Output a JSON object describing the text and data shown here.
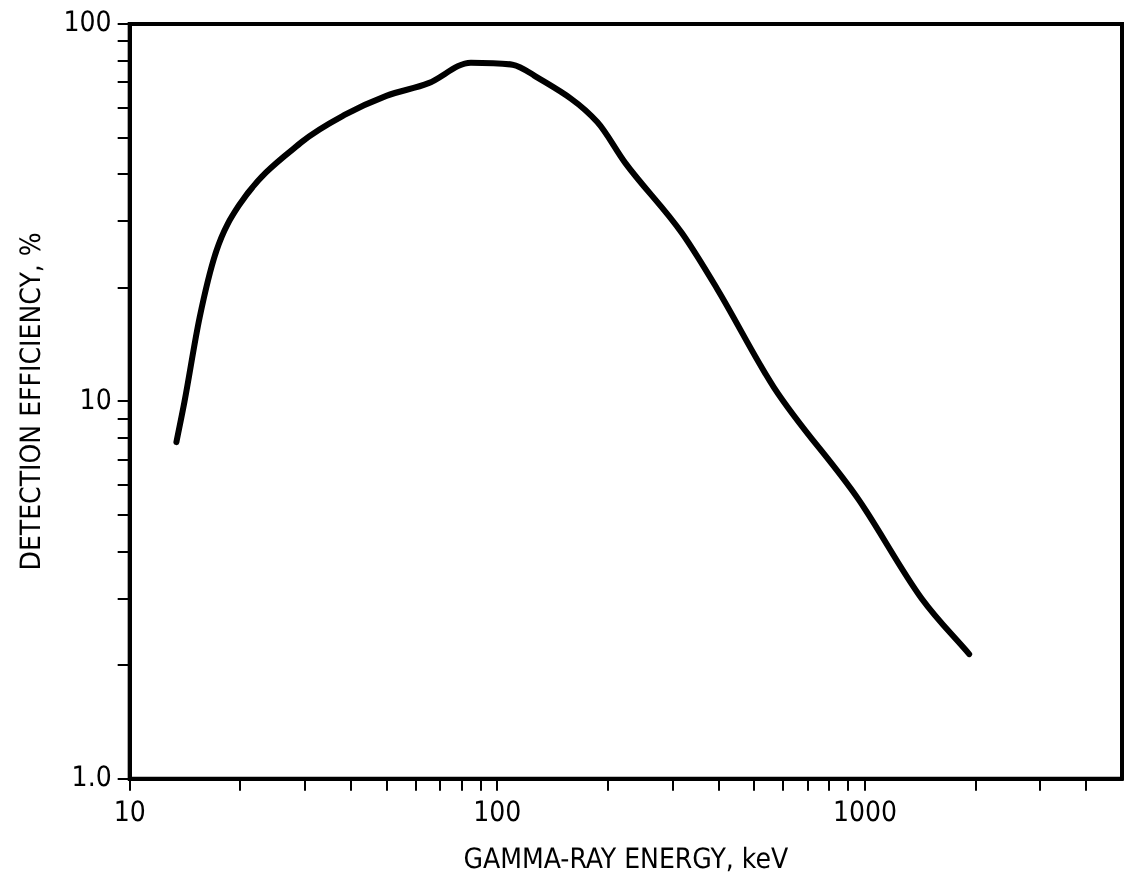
{
  "chart_data": {
    "type": "line",
    "xlabel": "GAMMA-RAY ENERGY, keV",
    "ylabel": "DETECTION EFFICIENCY, %",
    "log": "xy",
    "grid": false,
    "legend": false,
    "marker": "none",
    "line_style": "solid",
    "xlim": [
      10,
      5000
    ],
    "ylim": [
      1,
      100
    ],
    "xticks": [
      10,
      {
        "value": 20,
        "label": null
      },
      {
        "value": 30,
        "label": null
      },
      {
        "value": 40,
        "label": null
      },
      {
        "value": 50,
        "label": null
      },
      {
        "value": 60,
        "label": null
      },
      {
        "value": 70,
        "label": null
      },
      {
        "value": 80,
        "label": null
      },
      {
        "value": 90,
        "label": null
      },
      100,
      {
        "value": 200,
        "label": null
      },
      {
        "value": 300,
        "label": null
      },
      {
        "value": 400,
        "label": null
      },
      {
        "value": 500,
        "label": null
      },
      {
        "value": 600,
        "label": null
      },
      {
        "value": 700,
        "label": null
      },
      {
        "value": 800,
        "label": null
      },
      {
        "value": 900,
        "label": null
      },
      1000,
      {
        "value": 2000,
        "label": null
      },
      {
        "value": 3000,
        "label": null
      },
      {
        "value": 4000,
        "label": null
      }
    ],
    "yticks": [
      {
        "value": 1,
        "label": "1.0"
      },
      {
        "value": 2,
        "label": null
      },
      {
        "value": 3,
        "label": null
      },
      {
        "value": 4,
        "label": null
      },
      {
        "value": 5,
        "label": null
      },
      {
        "value": 6,
        "label": null
      },
      {
        "value": 7,
        "label": null
      },
      {
        "value": 8,
        "label": null
      },
      {
        "value": 9,
        "label": null
      },
      10,
      {
        "value": 20,
        "label": null
      },
      {
        "value": 30,
        "label": null
      },
      {
        "value": 40,
        "label": null
      },
      {
        "value": 50,
        "label": null
      },
      {
        "value": 60,
        "label": null
      },
      {
        "value": 70,
        "label": null
      },
      {
        "value": 80,
        "label": null
      },
      {
        "value": 90,
        "label": null
      },
      100
    ],
    "series": [
      {
        "color": "#000000",
        "x": [
          13.4,
          14.1,
          15.5,
          17.2,
          19.8,
          29.4,
          38.4,
          49.9,
          65,
          84.7,
          110,
          126,
          187,
          223,
          318,
          397,
          565,
          960,
          1427,
          1920
        ],
        "values": [
          7.8,
          10,
          16.7,
          25,
          33,
          48.7,
          57.4,
          64.5,
          69.7,
          79,
          78,
          73,
          55,
          42.8,
          27.9,
          19.8,
          10.9,
          5.5,
          3.0,
          2.14
        ]
      }
    ]
  }
}
